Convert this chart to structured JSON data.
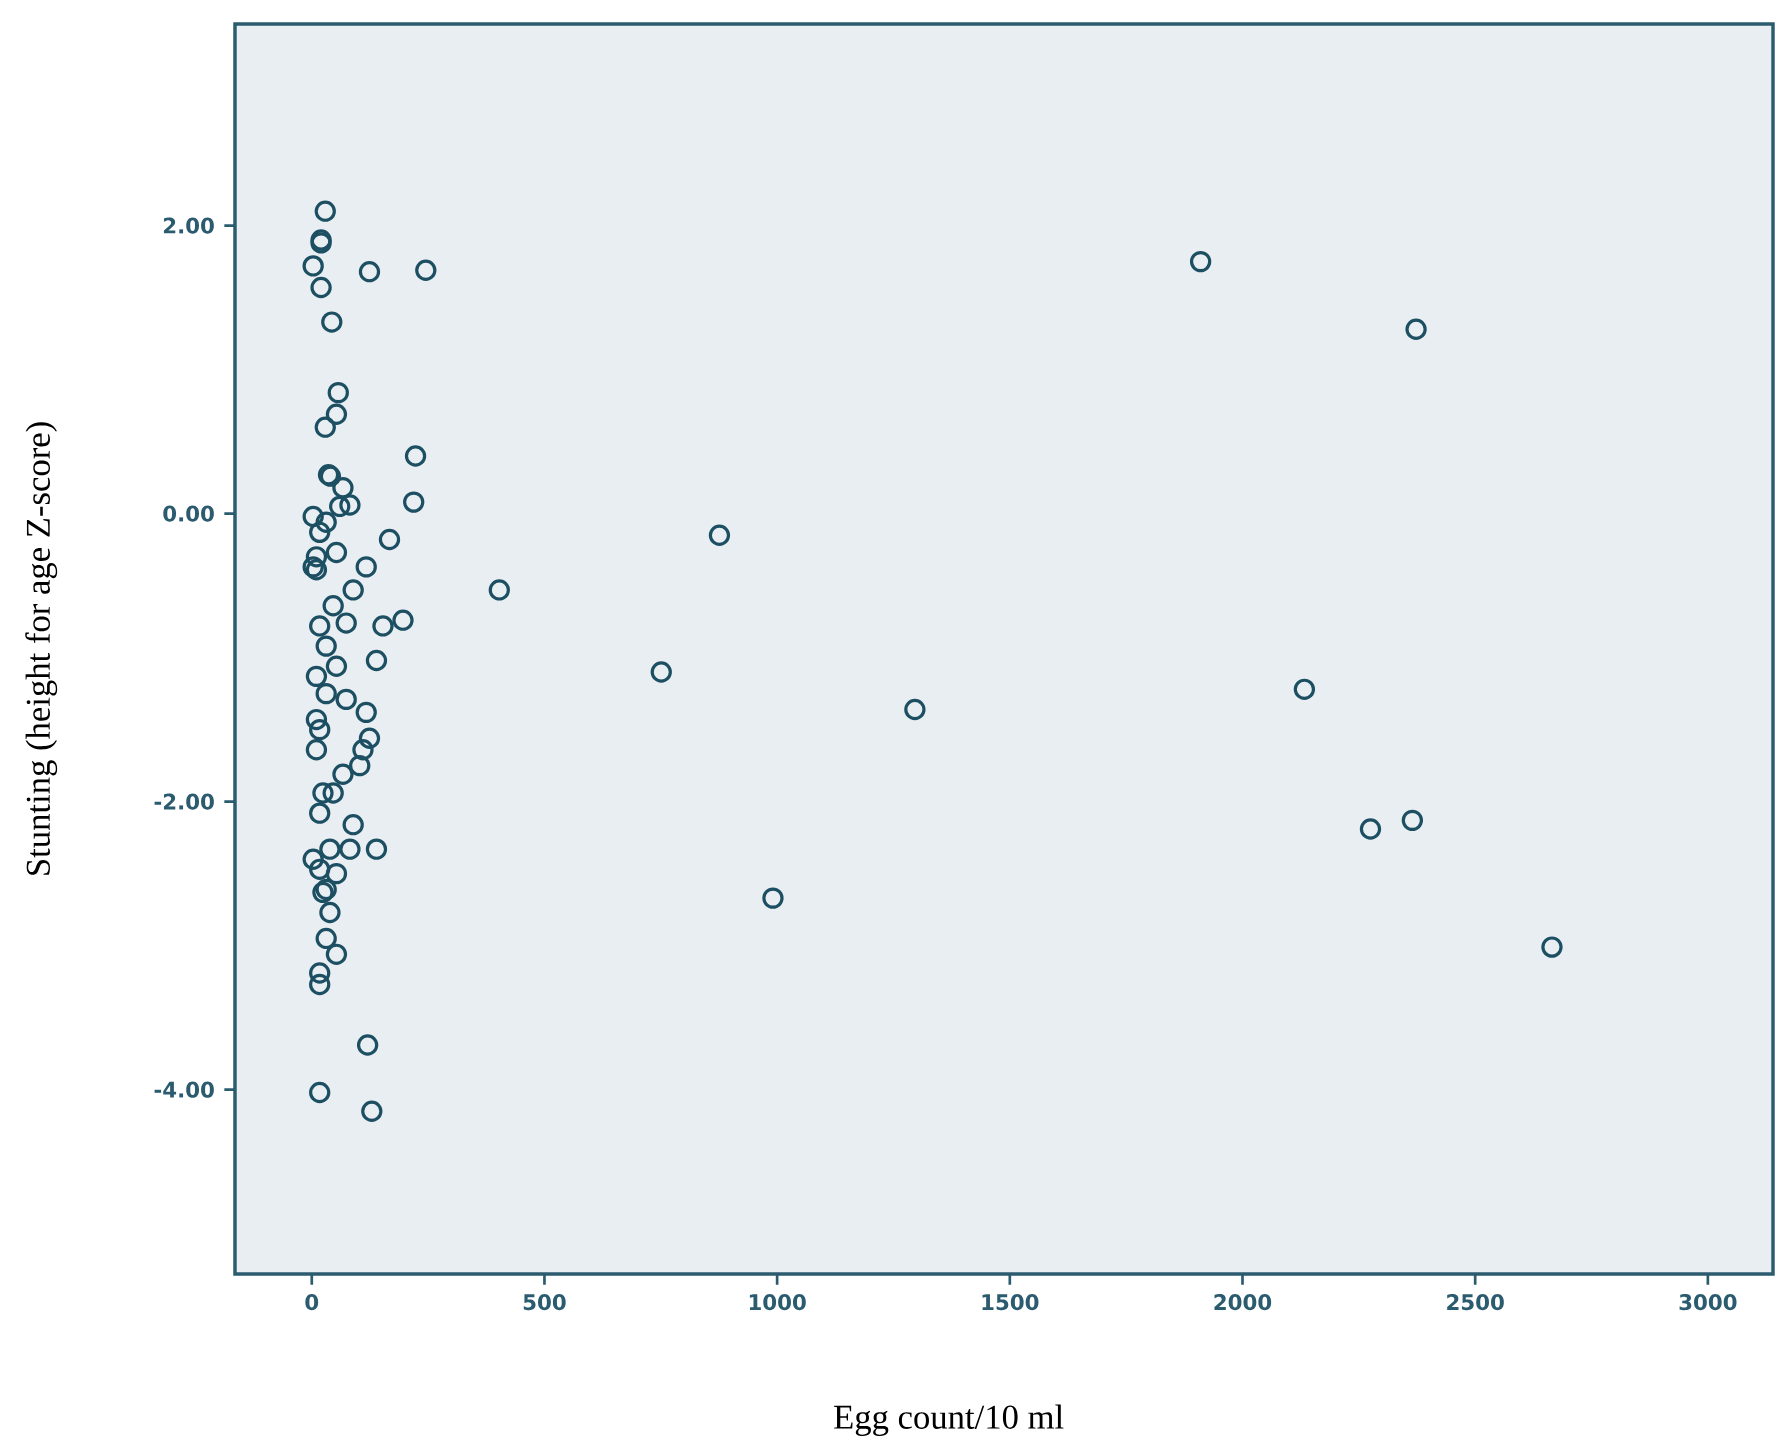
{
  "chart_data": {
    "type": "scatter",
    "xlabel": "Egg count/10 ml",
    "ylabel": "Stunting (height for age Z-score)",
    "xlim": [
      -165,
      3140
    ],
    "ylim": [
      -5.28,
      3.4
    ],
    "xticks": [
      0,
      500,
      1000,
      1500,
      2000,
      2500,
      3000
    ],
    "yticks": [
      {
        "value": -4,
        "label": "-4.00"
      },
      {
        "value": -2,
        "label": "-2.00"
      },
      {
        "value": 0,
        "label": "0.00"
      },
      {
        "value": 2,
        "label": "2.00"
      }
    ],
    "grid": false,
    "marker": "circle",
    "series": [
      {
        "color": "#1d4f63",
        "x": [
          245,
          124,
          1910,
          2373,
          223,
          219,
          876,
          403,
          751,
          1296,
          2133,
          2275,
          2365,
          2665,
          991,
          120,
          129,
          17,
          29,
          20,
          20,
          3,
          20,
          43,
          57,
          53,
          29,
          36,
          40,
          67,
          82,
          60,
          3,
          31,
          17,
          167,
          53,
          117,
          10,
          3,
          10,
          46,
          89,
          196,
          153,
          17,
          74,
          31,
          139,
          53,
          10,
          31,
          74,
          117,
          10,
          17,
          124,
          110,
          10,
          103,
          67,
          24,
          46,
          17,
          89,
          39,
          82,
          139,
          3,
          17,
          53,
          31,
          24,
          39,
          31,
          53,
          17,
          17
        ],
        "values": [
          1.69,
          1.68,
          1.75,
          1.28,
          0.4,
          0.08,
          -0.15,
          -0.53,
          -1.1,
          -1.36,
          -1.22,
          -2.19,
          -2.13,
          -3.01,
          -2.67,
          -3.69,
          -4.15,
          -4.02,
          2.1,
          1.88,
          1.9,
          1.72,
          1.57,
          1.33,
          0.84,
          0.69,
          0.6,
          0.27,
          0.26,
          0.18,
          0.06,
          0.05,
          -0.02,
          -0.06,
          -0.13,
          -0.18,
          -0.27,
          -0.37,
          -0.3,
          -0.37,
          -0.39,
          -0.64,
          -0.53,
          -0.74,
          -0.78,
          -0.78,
          -0.76,
          -0.92,
          -1.02,
          -1.06,
          -1.13,
          -1.25,
          -1.29,
          -1.38,
          -1.43,
          -1.5,
          -1.56,
          -1.64,
          -1.64,
          -1.75,
          -1.81,
          -1.94,
          -1.94,
          -2.08,
          -2.16,
          -2.33,
          -2.33,
          -2.33,
          -2.4,
          -2.47,
          -2.5,
          -2.61,
          -2.63,
          -2.77,
          -2.95,
          -3.06,
          -3.19,
          -3.27
        ]
      }
    ]
  }
}
